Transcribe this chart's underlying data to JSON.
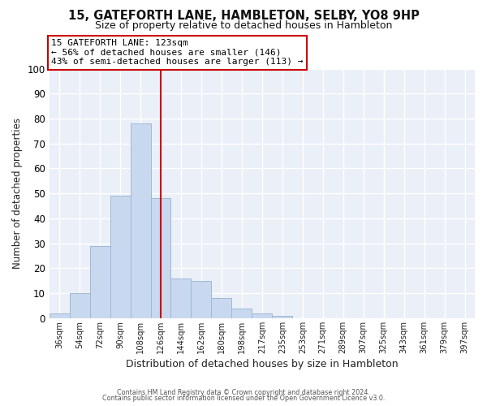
{
  "title": "15, GATEFORTH LANE, HAMBLETON, SELBY, YO8 9HP",
  "subtitle": "Size of property relative to detached houses in Hambleton",
  "xlabel": "Distribution of detached houses by size in Hambleton",
  "ylabel": "Number of detached properties",
  "bar_color": "#c8d8ee",
  "bar_edgecolor": "#a0b8d8",
  "categories": [
    "36sqm",
    "54sqm",
    "72sqm",
    "90sqm",
    "108sqm",
    "126sqm",
    "144sqm",
    "162sqm",
    "180sqm",
    "198sqm",
    "217sqm",
    "235sqm",
    "253sqm",
    "271sqm",
    "289sqm",
    "307sqm",
    "325sqm",
    "343sqm",
    "361sqm",
    "379sqm",
    "397sqm"
  ],
  "values": [
    2,
    10,
    29,
    49,
    78,
    48,
    16,
    15,
    8,
    4,
    2,
    1,
    0,
    0,
    0,
    0,
    0,
    0,
    0,
    0,
    0
  ],
  "vline_x": 5,
  "vline_color": "#cc0000",
  "annotation_title": "15 GATEFORTH LANE: 123sqm",
  "annotation_line1": "← 56% of detached houses are smaller (146)",
  "annotation_line2": "43% of semi-detached houses are larger (113) →",
  "ylim": [
    0,
    100
  ],
  "yticks": [
    0,
    10,
    20,
    30,
    40,
    50,
    60,
    70,
    80,
    90,
    100
  ],
  "footer1": "Contains HM Land Registry data © Crown copyright and database right 2024.",
  "footer2": "Contains public sector information licensed under the Open Government Licence v3.0.",
  "fig_bg_color": "#ffffff",
  "plot_bg_color": "#eaeff8",
  "grid_color": "#ffffff",
  "title_fontsize": 10.5,
  "subtitle_fontsize": 9
}
